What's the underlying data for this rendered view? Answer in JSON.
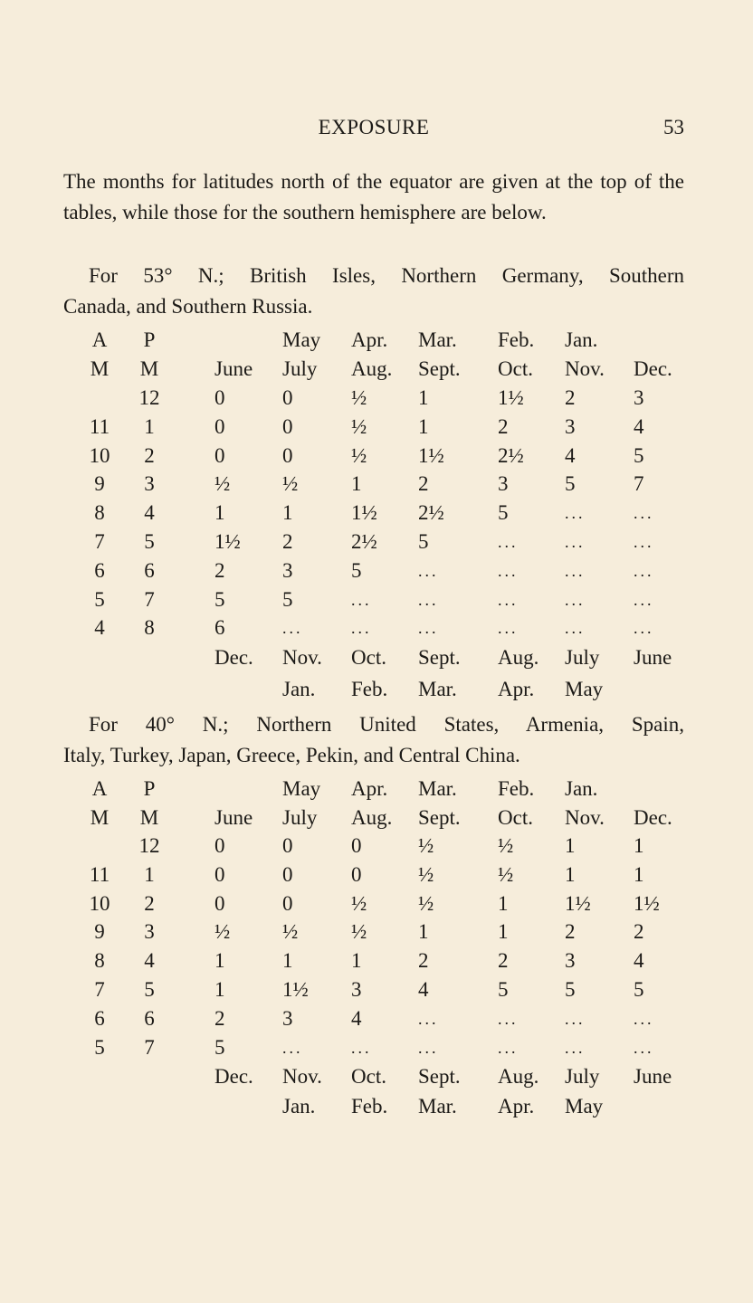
{
  "header": {
    "title": "EXPOSURE",
    "page_number": "53"
  },
  "intro": "The months for latitudes north of the equator are given at the top of the tables, while those for the southern hemisphere are below.",
  "sections": [
    {
      "caption_line1": "For 53° N.; British Isles, Northern Germany, Southern",
      "caption_line2": "Canada, and Southern Russia.",
      "table": {
        "top_header": [
          "A",
          "P",
          "",
          "May",
          "Apr.",
          "Mar.",
          "Feb.",
          "Jan.",
          ""
        ],
        "second_header": [
          "M",
          "M",
          "June",
          "July",
          "Aug.",
          "Sept.",
          "Oct.",
          "Nov.",
          "Dec."
        ],
        "rows": [
          [
            "",
            "12",
            "0",
            "0",
            "½",
            "1",
            "1½",
            "2",
            "3"
          ],
          [
            "11",
            "1",
            "0",
            "0",
            "½",
            "1",
            "2",
            "3",
            "4"
          ],
          [
            "10",
            "2",
            "0",
            "0",
            "½",
            "1½",
            "2½",
            "4",
            "5"
          ],
          [
            "9",
            "3",
            "½",
            "½",
            "1",
            "2",
            "3",
            "5",
            "7"
          ],
          [
            "8",
            "4",
            "1",
            "1",
            "1½",
            "2½",
            "5",
            "...",
            "..."
          ],
          [
            "7",
            "5",
            "1½",
            "2",
            "2½",
            "5",
            "...",
            "...",
            "..."
          ],
          [
            "6",
            "6",
            "2",
            "3",
            "5",
            "...",
            "...",
            "...",
            "..."
          ],
          [
            "5",
            "7",
            "5",
            "5",
            "...",
            "...",
            "...",
            "...",
            "..."
          ],
          [
            "4",
            "8",
            "6",
            "...",
            "...",
            "...",
            "...",
            "...",
            "..."
          ]
        ],
        "south_footer1": [
          "",
          "",
          "Dec.",
          "Nov.",
          "Oct.",
          "Sept.",
          "Aug.",
          "July",
          "June"
        ],
        "south_footer2": [
          "",
          "",
          "",
          "Jan.",
          "Feb.",
          "Mar.",
          "Apr.",
          "May",
          ""
        ]
      }
    },
    {
      "caption_line1": "For 40° N.; Northern United States, Armenia, Spain,",
      "caption_line2": "Italy, Turkey, Japan, Greece, Pekin, and Central China.",
      "table": {
        "top_header": [
          "A",
          "P",
          "",
          "May",
          "Apr.",
          "Mar.",
          "Feb.",
          "Jan.",
          ""
        ],
        "second_header": [
          "M",
          "M",
          "June",
          "July",
          "Aug.",
          "Sept.",
          "Oct.",
          "Nov.",
          "Dec."
        ],
        "rows": [
          [
            "",
            "12",
            "0",
            "0",
            "0",
            "½",
            "½",
            "1",
            "1"
          ],
          [
            "11",
            "1",
            "0",
            "0",
            "0",
            "½",
            "½",
            "1",
            "1"
          ],
          [
            "10",
            "2",
            "0",
            "0",
            "½",
            "½",
            "1",
            "1½",
            "1½"
          ],
          [
            "9",
            "3",
            "½",
            "½",
            "½",
            "1",
            "1",
            "2",
            "2"
          ],
          [
            "8",
            "4",
            "1",
            "1",
            "1",
            "2",
            "2",
            "3",
            "4"
          ],
          [
            "7",
            "5",
            "1",
            "1½",
            "3",
            "4",
            "5",
            "5",
            "5"
          ],
          [
            "6",
            "6",
            "2",
            "3",
            "4",
            "...",
            "...",
            "...",
            "..."
          ],
          [
            "5",
            "7",
            "5",
            "...",
            "...",
            "...",
            "...",
            "...",
            "..."
          ]
        ],
        "south_footer1": [
          "",
          "",
          "Dec.",
          "Nov.",
          "Oct.",
          "Sept.",
          "Aug.",
          "July",
          "June"
        ],
        "south_footer2": [
          "",
          "",
          "",
          "Jan.",
          "Feb.",
          "Mar.",
          "Apr.",
          "May",
          ""
        ]
      }
    }
  ]
}
